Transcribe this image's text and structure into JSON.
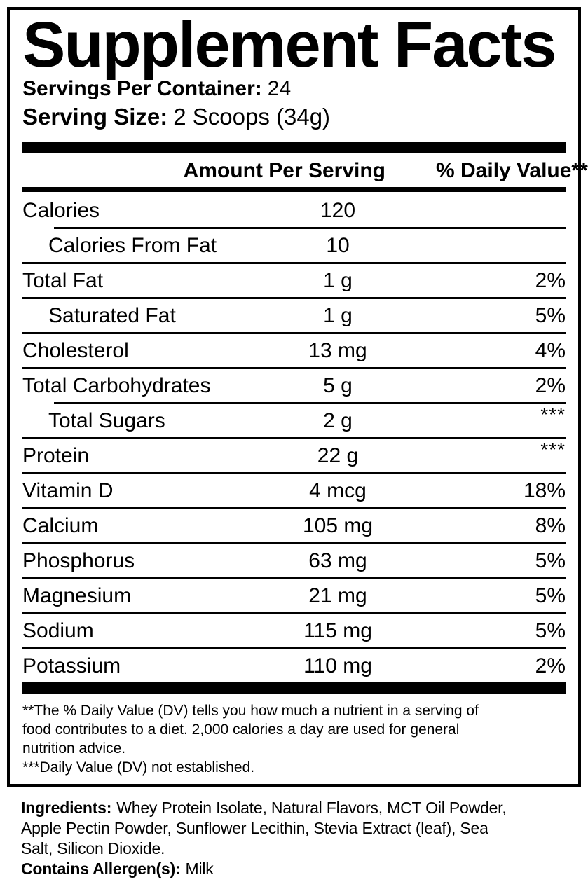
{
  "title": "Supplement Facts",
  "servings_per_container": {
    "label": "Servings Per Container:",
    "value": "24"
  },
  "serving_size": {
    "label": "Serving Size:",
    "value": "2 Scoops (34g)"
  },
  "table": {
    "amount_header": "Amount Per Serving",
    "dv_header": "% Daily Value**",
    "rows": [
      {
        "label": "Calories",
        "amount": "120",
        "dv": ""
      },
      {
        "label": "Calories From Fat",
        "amount": "10",
        "dv": ""
      },
      {
        "label": "Total Fat",
        "amount": "1 g",
        "dv": "2%"
      },
      {
        "label": "Saturated Fat",
        "amount": "1 g",
        "dv": "5%"
      },
      {
        "label": "Cholesterol",
        "amount": "13 mg",
        "dv": "4%"
      },
      {
        "label": "Total Carbohydrates",
        "amount": "5 g",
        "dv": "2%"
      },
      {
        "label": "Total Sugars",
        "amount": "2 g",
        "dv": "***"
      },
      {
        "label": "Protein",
        "amount": "22 g",
        "dv": "***"
      },
      {
        "label": "Vitamin D",
        "amount": "4 mcg",
        "dv": "18%"
      },
      {
        "label": "Calcium",
        "amount": "105 mg",
        "dv": "8%"
      },
      {
        "label": "Phosphorus",
        "amount": "63 mg",
        "dv": "5%"
      },
      {
        "label": "Magnesium",
        "amount": "21 mg",
        "dv": "5%"
      },
      {
        "label": "Sodium",
        "amount": "115 mg",
        "dv": "5%"
      },
      {
        "label": "Potassium",
        "amount": "110 mg",
        "dv": "2%"
      }
    ]
  },
  "footnotes": {
    "lines": [
      "**The % Daily Value (DV) tells you how much a nutrient in a serving of",
      "food contributes to a diet. 2,000 calories a day are used for general",
      "nutrition advice.",
      "***Daily Value (DV) not established."
    ]
  },
  "ingredients": {
    "label": "Ingredients:",
    "lines": [
      "Whey Protein Isolate, Natural Flavors, MCT Oil Powder,",
      "Apple Pectin Powder, Sunflower Lecithin, Stevia Extract (leaf), Sea",
      "Salt, Silicon Dioxide."
    ],
    "allergen_label": "Contains Allergen(s):",
    "allergen_value": "Milk"
  },
  "colors": {
    "ink": "#000000",
    "background": "#ffffff"
  }
}
